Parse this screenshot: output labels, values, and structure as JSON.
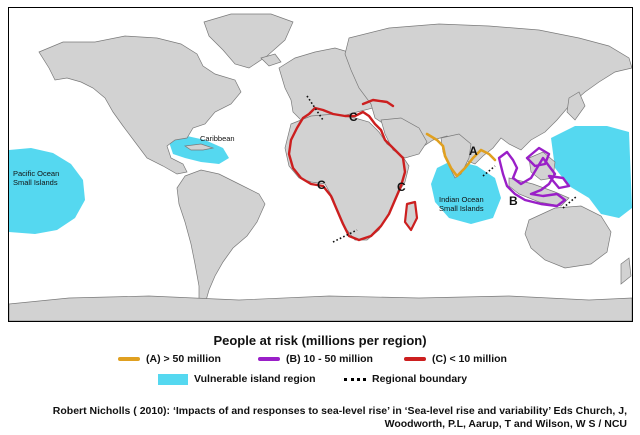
{
  "map": {
    "region_labels": {
      "caribbean": "Caribbean",
      "pacific": "Pacific Ocean\nSmall Islands",
      "indian": "Indian Ocean\nSmall Islands"
    },
    "region_letters": {
      "a": "A",
      "b": "B",
      "c_mediterranean": "C",
      "c_west_africa": "C",
      "c_east_africa": "C"
    },
    "colors": {
      "ocean": "#ffffff",
      "land": "#d2d2d2",
      "land_border": "#7a7a7a",
      "vulnerable_island": "#55d8f0",
      "category_a": "#e0a020",
      "category_b": "#9a1fc8",
      "category_c": "#cc1f1f"
    }
  },
  "legend": {
    "title": "People at risk (millions per region)",
    "category_a": "(A) > 50 million",
    "category_b": "(B) 10 - 50 million",
    "category_c": "(C) < 10 million",
    "vulnerable": "Vulnerable island region",
    "boundary": "Regional boundary"
  },
  "citation": {
    "line1": "Robert Nicholls ( 2010):  ‘Impacts of and responses to sea-level rise’ in ‘Sea-level rise and variability’ Eds Church, J,",
    "line2": "Woodworth, P.L, Aarup, T and Wilson, W S / NCU"
  }
}
